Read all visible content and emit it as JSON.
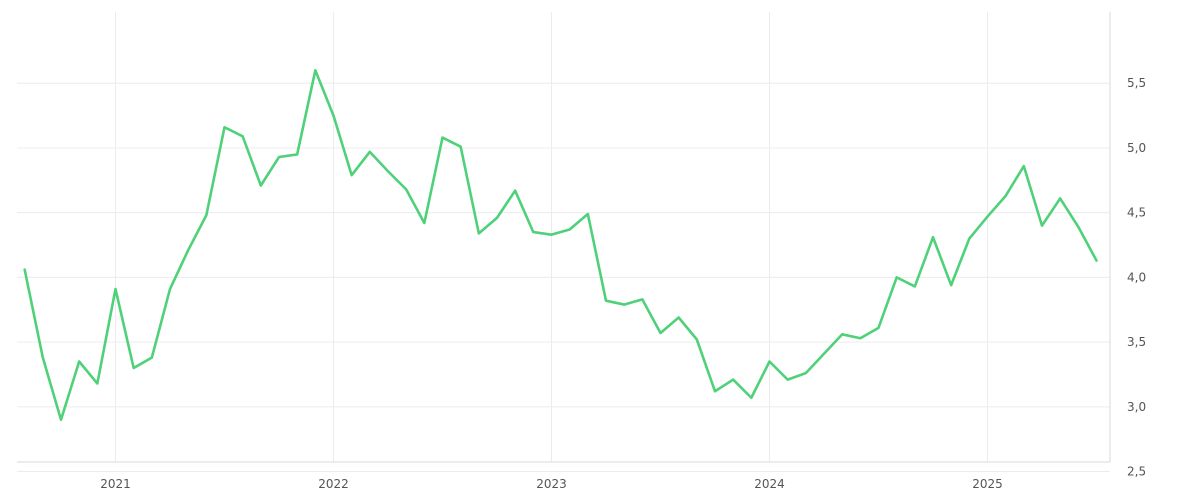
{
  "chart_data": {
    "type": "line",
    "title": "",
    "xlabel": "",
    "ylabel": "",
    "grid": true,
    "legend": "none",
    "x_range": [
      "2020-08",
      "2025-07"
    ],
    "ylim": [
      2.45,
      5.95
    ],
    "y_ticks": [
      2.5,
      3.0,
      3.5,
      4.0,
      4.5,
      5.0,
      5.5
    ],
    "y_tick_labels": [
      "2,5",
      "3,0",
      "3,5",
      "4,0",
      "4,5",
      "5,0",
      "5,5"
    ],
    "x_ticks": [
      "2021-01",
      "2022-01",
      "2023-01",
      "2024-01",
      "2025-01"
    ],
    "x_tick_labels": [
      "2021",
      "2022",
      "2023",
      "2024",
      "2025"
    ],
    "series": [
      {
        "color": "#4fd17a",
        "points": [
          [
            "2020-08",
            4.06
          ],
          [
            "2020-09",
            3.38
          ],
          [
            "2020-10",
            2.9
          ],
          [
            "2020-11",
            3.35
          ],
          [
            "2020-12",
            3.18
          ],
          [
            "2021-01",
            3.91
          ],
          [
            "2021-02",
            3.3
          ],
          [
            "2021-03",
            3.38
          ],
          [
            "2021-04",
            3.91
          ],
          [
            "2021-05",
            4.21
          ],
          [
            "2021-06",
            4.48
          ],
          [
            "2021-07",
            5.16
          ],
          [
            "2021-08",
            5.09
          ],
          [
            "2021-09",
            4.71
          ],
          [
            "2021-10",
            4.93
          ],
          [
            "2021-11",
            4.95
          ],
          [
            "2021-12",
            5.6
          ],
          [
            "2022-01",
            5.25
          ],
          [
            "2022-02",
            4.79
          ],
          [
            "2022-03",
            4.97
          ],
          [
            "2022-04",
            4.82
          ],
          [
            "2022-05",
            4.68
          ],
          [
            "2022-06",
            4.42
          ],
          [
            "2022-07",
            5.08
          ],
          [
            "2022-08",
            5.01
          ],
          [
            "2022-09",
            4.34
          ],
          [
            "2022-10",
            4.46
          ],
          [
            "2022-11",
            4.67
          ],
          [
            "2022-12",
            4.35
          ],
          [
            "2023-01",
            4.33
          ],
          [
            "2023-02",
            4.37
          ],
          [
            "2023-03",
            4.49
          ],
          [
            "2023-04",
            3.82
          ],
          [
            "2023-05",
            3.79
          ],
          [
            "2023-06",
            3.83
          ],
          [
            "2023-07",
            3.57
          ],
          [
            "2023-08",
            3.69
          ],
          [
            "2023-09",
            3.52
          ],
          [
            "2023-10",
            3.12
          ],
          [
            "2023-11",
            3.21
          ],
          [
            "2023-12",
            3.07
          ],
          [
            "2024-01",
            3.35
          ],
          [
            "2024-02",
            3.21
          ],
          [
            "2024-03",
            3.26
          ],
          [
            "2024-04",
            3.41
          ],
          [
            "2024-05",
            3.56
          ],
          [
            "2024-06",
            3.53
          ],
          [
            "2024-07",
            3.61
          ],
          [
            "2024-08",
            4.0
          ],
          [
            "2024-09",
            3.93
          ],
          [
            "2024-10",
            4.31
          ],
          [
            "2024-11",
            3.94
          ],
          [
            "2024-12",
            4.3
          ],
          [
            "2025-01",
            4.47
          ],
          [
            "2025-02",
            4.63
          ],
          [
            "2025-03",
            4.86
          ],
          [
            "2025-04",
            4.4
          ],
          [
            "2025-05",
            4.61
          ],
          [
            "2025-06",
            4.39
          ],
          [
            "2025-07",
            4.13
          ]
        ]
      }
    ]
  }
}
